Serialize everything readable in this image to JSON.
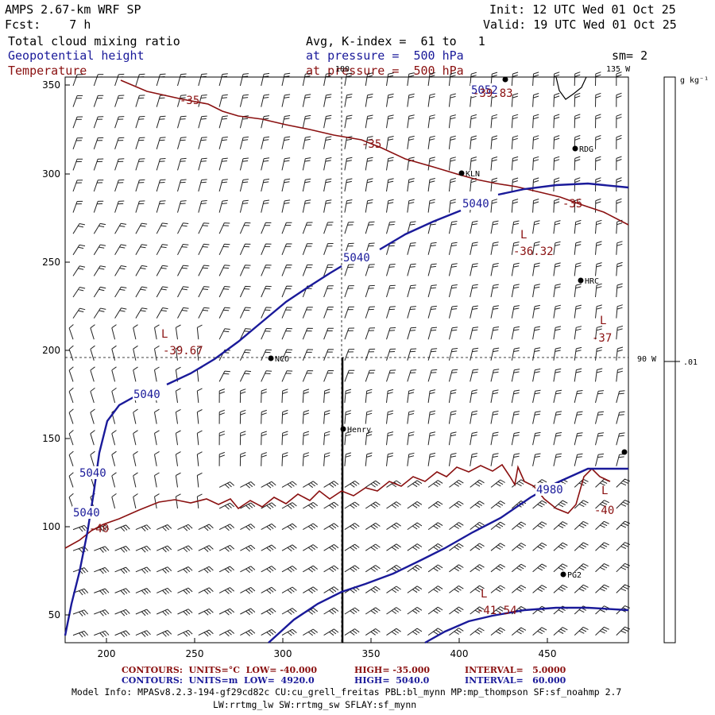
{
  "header": {
    "model": "AMPS 2.67-km WRF SP",
    "fcst": "Fcst:    7 h",
    "init": "Init: 12 UTC Wed 01 Oct 25",
    "valid": "Valid: 19 UTC Wed 01 Oct 25",
    "field1": "Total cloud mixing ratio",
    "field1_extra": "Avg, K-index =  61 to   1",
    "field2": "Geopotential height",
    "field2_extra": "at pressure =  500 hPa",
    "field3": "Temperature",
    "field3_extra": "at pressure =  500 hPa",
    "sm": "sm= 2"
  },
  "colors": {
    "height": "#1a1a9a",
    "temperature": "#8a1010",
    "barbs": "#222222"
  },
  "axes": {
    "x_ticks": [
      "200",
      "250",
      "300",
      "350",
      "400",
      "450"
    ],
    "y_ticks": [
      "350",
      "300",
      "250",
      "200",
      "150",
      "100",
      "50"
    ]
  },
  "map_labels": {
    "lon_180": "180",
    "lon_135": "135 W",
    "lon_90": "90 W"
  },
  "colorbar": {
    "unit": "g kg⁻¹",
    "tick": ".01"
  },
  "stations": [
    {
      "name": "KLN"
    },
    {
      "name": "RDG"
    },
    {
      "name": "HRC"
    },
    {
      "name": "NCO"
    },
    {
      "name": "Henry"
    },
    {
      "name": "PG2"
    },
    {
      "name": ""
    },
    {
      "name": ""
    }
  ],
  "height_labels": [
    "5040",
    "5040",
    "5040",
    "5040",
    "5040",
    "4980",
    "5052"
  ],
  "temp_labels": [
    "-35",
    "-35",
    "-35",
    "-40",
    "-40",
    "-39.83"
  ],
  "lows": [
    {
      "letter": "L",
      "value": "-39.67"
    },
    {
      "letter": "L",
      "value": "-36.32"
    },
    {
      "letter": "L",
      "value": "-37"
    },
    {
      "letter": "L",
      "value": "-41.54"
    },
    {
      "letter": "L",
      "value": ""
    }
  ],
  "footer": {
    "c1_label": "CONTOURS:  UNITS=°C  LOW= -40.000",
    "c1_high": "HIGH= -35.000",
    "c1_int": "INTERVAL=   5.0000",
    "c2_label": "CONTOURS:  UNITS=m  LOW=  4920.0",
    "c2_high": "HIGH=  5040.0",
    "c2_int": "INTERVAL=   60.000",
    "model_info": "Model Info: MPASv8.2.3-194-gf29cd82c CU:cu_grell_freitas PBL:bl_mynn MP:mp_thompson SF:sf_noahmp 2.7",
    "model_info2": "LW:rrtmg_lw SW:rrtmg_sw SFLAY:sf_mynn"
  }
}
